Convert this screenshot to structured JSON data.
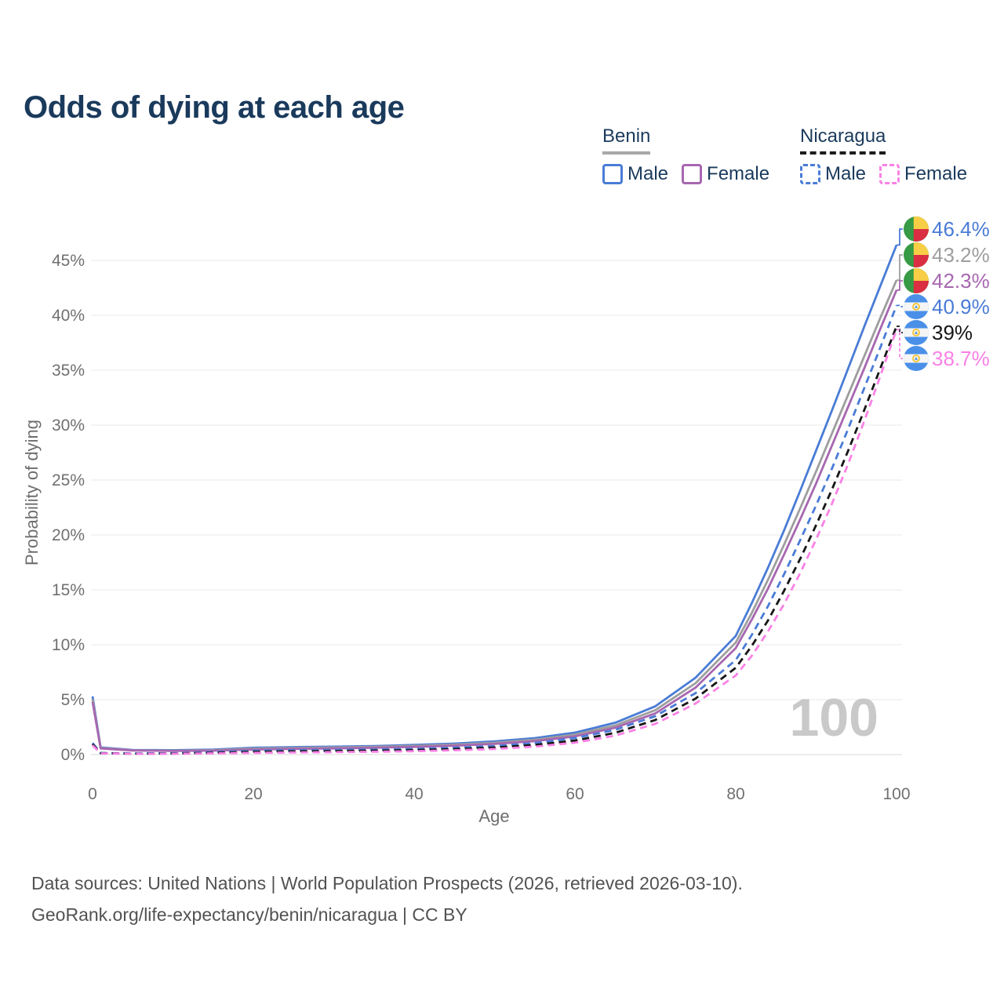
{
  "title": "Odds of dying at each age",
  "hover_age": "100",
  "legend": {
    "groups": [
      {
        "country": "Benin",
        "items": [
          {
            "label": "Male"
          },
          {
            "label": "Female"
          }
        ]
      },
      {
        "country": "Nicaragua",
        "items": [
          {
            "label": "Male"
          },
          {
            "label": "Female"
          }
        ]
      }
    ]
  },
  "footer": {
    "line1": "Data sources: United Nations | World Population Prospects (2026, retrieved 2026-03-10).",
    "line2": "GeoRank.org/life-expectancy/benin/nicaragua | CC BY"
  },
  "colors": {
    "benin_male": "#4a7cd6",
    "benin_total": "#9e9e9e",
    "benin_female": "#a767b0",
    "nicaragua_male": "#4a7cd6",
    "nicaragua_total": "#161616",
    "nicaragua_female": "#f981e6",
    "title_text": "#1a3a5c",
    "tick_text": "#707070",
    "gridline": "#e9e9e9",
    "watermark": "#c9c9c9",
    "flag_benin": [
      "#379a44",
      "#f7ce46",
      "#da2f42"
    ],
    "flag_nicaragua": [
      "#4a90e8",
      "#f5f5f5",
      "#f3c53d"
    ]
  },
  "chart_data": {
    "type": "line",
    "title": "Odds of dying at each age",
    "xlabel": "Age",
    "ylabel": "Probability of dying",
    "xlim": [
      0,
      100
    ],
    "ylim": [
      0,
      48
    ],
    "xticks": [
      0,
      20,
      40,
      60,
      80,
      100
    ],
    "yticks": [
      0,
      5,
      10,
      15,
      20,
      25,
      30,
      35,
      40,
      45
    ],
    "ytick_suffix": "%",
    "grid": true,
    "legend_position": "top-right",
    "ages": [
      0,
      1,
      5,
      10,
      15,
      20,
      25,
      30,
      35,
      40,
      45,
      50,
      55,
      60,
      65,
      70,
      75,
      80,
      82,
      84,
      86,
      88,
      90,
      92,
      94,
      96,
      98,
      100
    ],
    "series": [
      {
        "name": "Benin Male",
        "country": "Benin",
        "sex": "Male",
        "color": "#4a7cd6",
        "dashed": false,
        "flag": "benin",
        "end_label": "46.4%",
        "values": [
          5.3,
          0.65,
          0.42,
          0.4,
          0.45,
          0.62,
          0.68,
          0.72,
          0.78,
          0.88,
          1.0,
          1.2,
          1.5,
          2.0,
          2.9,
          4.4,
          7.0,
          10.8,
          13.8,
          17.0,
          20.4,
          24.0,
          27.7,
          31.4,
          35.2,
          39.0,
          42.7,
          46.4
        ]
      },
      {
        "name": "Benin (both sexes)",
        "country": "Benin",
        "sex": "Both",
        "color": "#9e9e9e",
        "dashed": false,
        "flag": "benin",
        "end_label": "43.2%",
        "values": [
          5.05,
          0.6,
          0.39,
          0.36,
          0.4,
          0.54,
          0.6,
          0.64,
          0.7,
          0.79,
          0.9,
          1.08,
          1.36,
          1.82,
          2.65,
          4.05,
          6.5,
          10.2,
          12.9,
          15.9,
          19.1,
          22.4,
          25.8,
          29.3,
          32.8,
          36.3,
          39.8,
          43.2
        ]
      },
      {
        "name": "Benin Female",
        "country": "Benin",
        "sex": "Female",
        "color": "#a767b0",
        "dashed": false,
        "flag": "benin",
        "end_label": "42.3%",
        "values": [
          4.8,
          0.56,
          0.37,
          0.33,
          0.36,
          0.46,
          0.52,
          0.56,
          0.62,
          0.7,
          0.81,
          0.97,
          1.23,
          1.66,
          2.45,
          3.75,
          6.1,
          9.7,
          12.3,
          15.1,
          18.2,
          21.4,
          24.7,
          28.2,
          31.7,
          35.2,
          38.8,
          42.3
        ]
      },
      {
        "name": "Nicaragua Male",
        "country": "Nicaragua",
        "sex": "Male",
        "color": "#4a7cd6",
        "dashed": true,
        "flag": "nicaragua",
        "end_label": "40.9%",
        "values": [
          1.05,
          0.15,
          0.1,
          0.12,
          0.22,
          0.35,
          0.4,
          0.42,
          0.46,
          0.52,
          0.62,
          0.78,
          1.05,
          1.5,
          2.25,
          3.5,
          5.6,
          8.6,
          10.9,
          13.5,
          16.4,
          19.5,
          22.7,
          26.1,
          29.7,
          33.4,
          37.1,
          40.9
        ]
      },
      {
        "name": "Nicaragua (both sexes)",
        "country": "Nicaragua",
        "sex": "Both",
        "color": "#161616",
        "dashed": true,
        "flag": "nicaragua",
        "end_label": "39%",
        "values": [
          0.95,
          0.13,
          0.08,
          0.09,
          0.16,
          0.25,
          0.29,
          0.32,
          0.36,
          0.41,
          0.5,
          0.64,
          0.88,
          1.28,
          1.98,
          3.15,
          5.1,
          7.9,
          9.9,
          12.2,
          14.9,
          17.8,
          20.9,
          24.2,
          27.7,
          31.4,
          35.2,
          39.0
        ]
      },
      {
        "name": "Nicaragua Female",
        "country": "Nicaragua",
        "sex": "Female",
        "color": "#f981e6",
        "dashed": true,
        "flag": "nicaragua",
        "end_label": "38.7%",
        "values": [
          0.85,
          0.11,
          0.07,
          0.07,
          0.11,
          0.16,
          0.19,
          0.22,
          0.26,
          0.31,
          0.39,
          0.51,
          0.72,
          1.08,
          1.72,
          2.8,
          4.65,
          7.2,
          9.0,
          11.2,
          13.7,
          16.5,
          19.6,
          22.9,
          26.5,
          30.4,
          34.5,
          38.7
        ]
      }
    ]
  }
}
